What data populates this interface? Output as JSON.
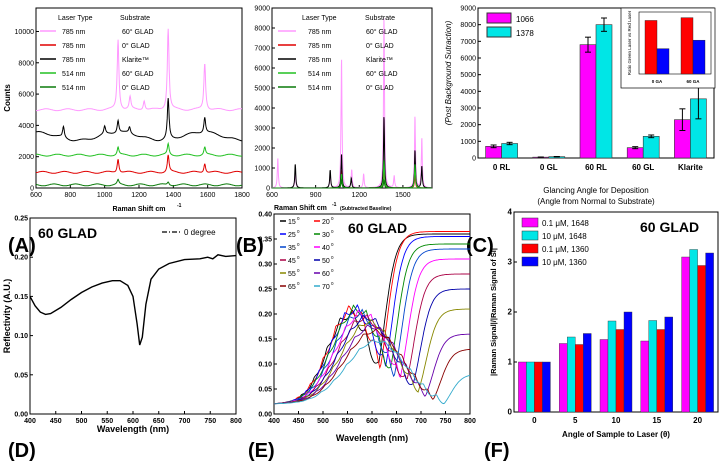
{
  "colors": {
    "pink": "#ff99ff",
    "red": "#e00000",
    "black": "#000000",
    "green": "#22c022",
    "darkgreen": "#0a7a0a",
    "magenta": "#ff00ff",
    "cyan": "#00e6e6",
    "blue": "#0000ff",
    "bar_red": "#ff0000"
  },
  "panels": {
    "A": {
      "tag": "(A)"
    },
    "B": {
      "tag": "(B)"
    },
    "C": {
      "tag": "(C)"
    },
    "D": {
      "tag": "(D)"
    },
    "E": {
      "tag": "(E)"
    },
    "F": {
      "tag": "(F)"
    }
  },
  "chart_data": [
    {
      "id": "A",
      "type": "line",
      "xlabel": "Raman Shift cm",
      "xlabel_sup": "-1",
      "ylabel": "Counts",
      "xlim": [
        600,
        1800
      ],
      "ylim": [
        0,
        11500
      ],
      "xticks": [
        "600",
        "800",
        "1000",
        "1200",
        "1400",
        "1600",
        "1800"
      ],
      "yticks": [
        "0",
        "2000",
        "4000",
        "6000",
        "8000",
        "10000"
      ],
      "legend_header": [
        "Laser Type",
        "Substrate"
      ],
      "series": [
        {
          "name": "785 nm",
          "substrate": "60° GLAD",
          "color": "#ff99ff",
          "baseline": 5000,
          "peaks": [
            [
              1078,
              4500
            ],
            [
              1370,
              5200
            ],
            [
              1583,
              3000
            ],
            [
              1148,
              800
            ],
            [
              1230,
              600
            ]
          ]
        },
        {
          "name": "785 nm",
          "substrate": "0° GLAD",
          "color": "#e00000",
          "baseline": 1000,
          "peaks": [
            [
              1078,
              900
            ],
            [
              1370,
              1100
            ],
            [
              1583,
              600
            ]
          ]
        },
        {
          "name": "785 nm",
          "substrate": "Klarite™",
          "color": "#000000",
          "baseline": 3300,
          "peaks": [
            [
              760,
              700
            ],
            [
              1000,
              500
            ],
            [
              1078,
              800
            ],
            [
              1370,
              2600
            ],
            [
              1583,
              1000
            ],
            [
              1145,
              400
            ]
          ]
        },
        {
          "name": "514 nm",
          "substrate": "60° GLAD",
          "color": "#22c022",
          "baseline": 2100,
          "peaks": [
            [
              1078,
              500
            ],
            [
              1370,
              700
            ],
            [
              1583,
              500
            ]
          ]
        },
        {
          "name": "514 nm",
          "substrate": "0° GLAD",
          "color": "#0a7a0a",
          "baseline": 200,
          "peaks": [
            [
              1078,
              300
            ],
            [
              1370,
              200
            ]
          ]
        }
      ]
    },
    {
      "id": "B",
      "type": "line",
      "xlabel": "Raman Shift cm",
      "xlabel_sup": "-1",
      "xlabel_small": " (Subtracted Baseline)",
      "xlim": [
        600,
        1700
      ],
      "ylim": [
        0,
        9000
      ],
      "xticks": [
        "600",
        "900",
        "1200",
        "1500"
      ],
      "yticks": [
        "0",
        "1000",
        "2000",
        "3000",
        "4000",
        "5000",
        "6000",
        "7000",
        "8000",
        "9000"
      ],
      "legend_header": [
        "Laser Type",
        "Substrate"
      ],
      "series": [
        {
          "name": "785 nm",
          "substrate": "60° GLAD",
          "color": "#ff99ff",
          "peaks": [
            [
              640,
              1500
            ],
            [
              760,
              800
            ],
            [
              1000,
              700
            ],
            [
              1078,
              6500
            ],
            [
              1148,
              900
            ],
            [
              1230,
              700
            ],
            [
              1370,
              8600
            ],
            [
              1440,
              600
            ],
            [
              1583,
              3600
            ],
            [
              1630,
              2500
            ]
          ]
        },
        {
          "name": "785 nm",
          "substrate": "0° GLAD",
          "color": "#e00000",
          "peaks": [
            [
              1078,
              900
            ],
            [
              1370,
              1200
            ],
            [
              1583,
              700
            ]
          ]
        },
        {
          "name": "785 nm",
          "substrate": "Klarite™",
          "color": "#000000",
          "peaks": [
            [
              760,
              1200
            ],
            [
              1000,
              900
            ],
            [
              1078,
              1700
            ],
            [
              1145,
              500
            ],
            [
              1370,
              3600
            ],
            [
              1583,
              1900
            ],
            [
              1630,
              1100
            ]
          ]
        },
        {
          "name": "514 nm",
          "substrate": "60° GLAD",
          "color": "#22c022",
          "peaks": [
            [
              1078,
              700
            ],
            [
              1370,
              1400
            ],
            [
              1583,
              1200
            ]
          ]
        },
        {
          "name": "514 nm",
          "substrate": "0° GLAD",
          "color": "#0a7a0a",
          "peaks": [
            [
              1078,
              400
            ],
            [
              1370,
              400
            ]
          ]
        }
      ]
    },
    {
      "id": "C",
      "type": "bar",
      "ylabel": "(Post Background Sutraction)",
      "xlabel_line1": "Glancing Angle for Deposition",
      "xlabel_line2": "(Angle from Normal to Substrate)",
      "categories": [
        "0 RL",
        "0 GL",
        "60 RL",
        "60 GL",
        "Klarite"
      ],
      "ylim": [
        0,
        9000
      ],
      "yticks": [
        "0",
        "1000",
        "2000",
        "3000",
        "4000",
        "5000",
        "6000",
        "7000",
        "8000",
        "9000"
      ],
      "series": [
        {
          "name": "1066",
          "color": "#ff00ff",
          "values": [
            700,
            50,
            6800,
            620,
            2300
          ],
          "errors": [
            80,
            10,
            450,
            60,
            650
          ]
        },
        {
          "name": "1378",
          "color": "#00e6e6",
          "values": [
            870,
            80,
            8000,
            1300,
            3550
          ],
          "errors": [
            70,
            10,
            400,
            80,
            1200
          ]
        }
      ],
      "inset": {
        "ylabel": "Ratio Green Laser vs Red Laser",
        "categories": [
          "0 GA",
          "60 GA"
        ],
        "series": [
          {
            "color": "#ff0000",
            "values": [
              9.5,
              10
            ]
          },
          {
            "color": "#0000ff",
            "values": [
              4.5,
              6
            ]
          }
        ],
        "ylim": [
          0,
          11
        ]
      }
    },
    {
      "id": "D",
      "type": "line",
      "title": "60 GLAD",
      "legend": "0 degree",
      "xlabel": "Wavelength (nm)",
      "ylabel": "Reflectivity (A.U.)",
      "xlim": [
        400,
        800
      ],
      "ylim": [
        0,
        0.25
      ],
      "xticks": [
        "400",
        "450",
        "500",
        "550",
        "600",
        "650",
        "700",
        "750",
        "800"
      ],
      "yticks": [
        "0.00",
        "0.05",
        "0.10",
        "0.15",
        "0.20",
        "0.25"
      ],
      "points": [
        [
          400,
          0.15
        ],
        [
          410,
          0.138
        ],
        [
          420,
          0.13
        ],
        [
          430,
          0.127
        ],
        [
          440,
          0.128
        ],
        [
          460,
          0.136
        ],
        [
          480,
          0.146
        ],
        [
          500,
          0.155
        ],
        [
          520,
          0.162
        ],
        [
          540,
          0.167
        ],
        [
          560,
          0.17
        ],
        [
          575,
          0.17
        ],
        [
          590,
          0.164
        ],
        [
          600,
          0.15
        ],
        [
          608,
          0.115
        ],
        [
          613,
          0.088
        ],
        [
          618,
          0.098
        ],
        [
          625,
          0.14
        ],
        [
          635,
          0.172
        ],
        [
          650,
          0.185
        ],
        [
          670,
          0.192
        ],
        [
          700,
          0.197
        ],
        [
          730,
          0.198
        ],
        [
          745,
          0.2
        ],
        [
          755,
          0.198
        ],
        [
          765,
          0.203
        ],
        [
          780,
          0.201
        ],
        [
          800,
          0.202
        ]
      ]
    },
    {
      "id": "E",
      "type": "line",
      "title": "60 GLAD",
      "xlabel": "Wavelength (nm)",
      "xlim": [
        400,
        800
      ],
      "ylim": [
        0,
        0.4
      ],
      "xticks": [
        "400",
        "450",
        "500",
        "550",
        "600",
        "650",
        "700",
        "750",
        "800"
      ],
      "yticks": [
        "0.00",
        "0.05",
        "0.10",
        "0.15",
        "0.20",
        "0.25",
        "0.30",
        "0.35",
        "0.40"
      ],
      "series": [
        {
          "angle": "15",
          "color": "#000000",
          "center": 555,
          "width": 65,
          "amp": 0.19,
          "plateau": 0.36,
          "onset": 625,
          "osc": 0.03
        },
        {
          "angle": "20",
          "color": "#ff0000",
          "center": 560,
          "width": 68,
          "amp": 0.2,
          "plateau": 0.365,
          "onset": 630,
          "osc": 0.032
        },
        {
          "angle": "25",
          "color": "#0000ff",
          "center": 565,
          "width": 70,
          "amp": 0.2,
          "plateau": 0.355,
          "onset": 640,
          "osc": 0.03
        },
        {
          "angle": "30",
          "color": "#008800",
          "center": 570,
          "width": 72,
          "amp": 0.2,
          "plateau": 0.34,
          "onset": 650,
          "osc": 0.028
        },
        {
          "angle": "35",
          "color": "#0044cc",
          "center": 575,
          "width": 74,
          "amp": 0.19,
          "plateau": 0.33,
          "onset": 660,
          "osc": 0.026
        },
        {
          "angle": "40",
          "color": "#ff00ff",
          "center": 580,
          "width": 76,
          "amp": 0.19,
          "plateau": 0.31,
          "onset": 672,
          "osc": 0.024
        },
        {
          "angle": "45",
          "color": "#aa0044",
          "center": 585,
          "width": 78,
          "amp": 0.18,
          "plateau": 0.28,
          "onset": 685,
          "osc": 0.022
        },
        {
          "angle": "50",
          "color": "#0000aa",
          "center": 590,
          "width": 80,
          "amp": 0.18,
          "plateau": 0.25,
          "onset": 698,
          "osc": 0.02
        },
        {
          "angle": "55",
          "color": "#888800",
          "center": 595,
          "width": 82,
          "amp": 0.17,
          "plateau": 0.21,
          "onset": 710,
          "osc": 0.018
        },
        {
          "angle": "60",
          "color": "#6600aa",
          "center": 600,
          "width": 84,
          "amp": 0.16,
          "plateau": 0.16,
          "onset": 724,
          "osc": 0.016
        },
        {
          "angle": "65",
          "color": "#880000",
          "center": 605,
          "width": 86,
          "amp": 0.15,
          "plateau": 0.13,
          "onset": 740,
          "osc": 0.014
        },
        {
          "angle": "70",
          "color": "#33aacc",
          "center": 610,
          "width": 88,
          "amp": 0.13,
          "plateau": 0.08,
          "onset": 760,
          "osc": 0.012
        }
      ]
    },
    {
      "id": "F",
      "type": "bar",
      "title": "60 GLAD",
      "xlabel": "Angle of Sample to Laser (θ)",
      "ylabel": "|Raman Signal|/|Raman Signal of Si|",
      "categories": [
        "0",
        "5",
        "10",
        "15",
        "20"
      ],
      "ylim": [
        0,
        4
      ],
      "yticks": [
        "0",
        "1",
        "2",
        "3",
        "4"
      ],
      "series": [
        {
          "name": "0.1 μM, 1648",
          "color": "#ff00ff",
          "values": [
            1.0,
            1.37,
            1.45,
            1.42,
            3.1
          ]
        },
        {
          "name": "10 μM, 1648",
          "color": "#00e6e6",
          "values": [
            1.0,
            1.5,
            1.82,
            1.83,
            3.25
          ]
        },
        {
          "name": "0.1 μM, 1360",
          "color": "#ff0000",
          "values": [
            1.0,
            1.35,
            1.65,
            1.65,
            2.93
          ]
        },
        {
          "name": "10 μM, 1360",
          "color": "#0000ff",
          "values": [
            1.0,
            1.57,
            2.0,
            1.9,
            3.18
          ]
        }
      ]
    }
  ]
}
